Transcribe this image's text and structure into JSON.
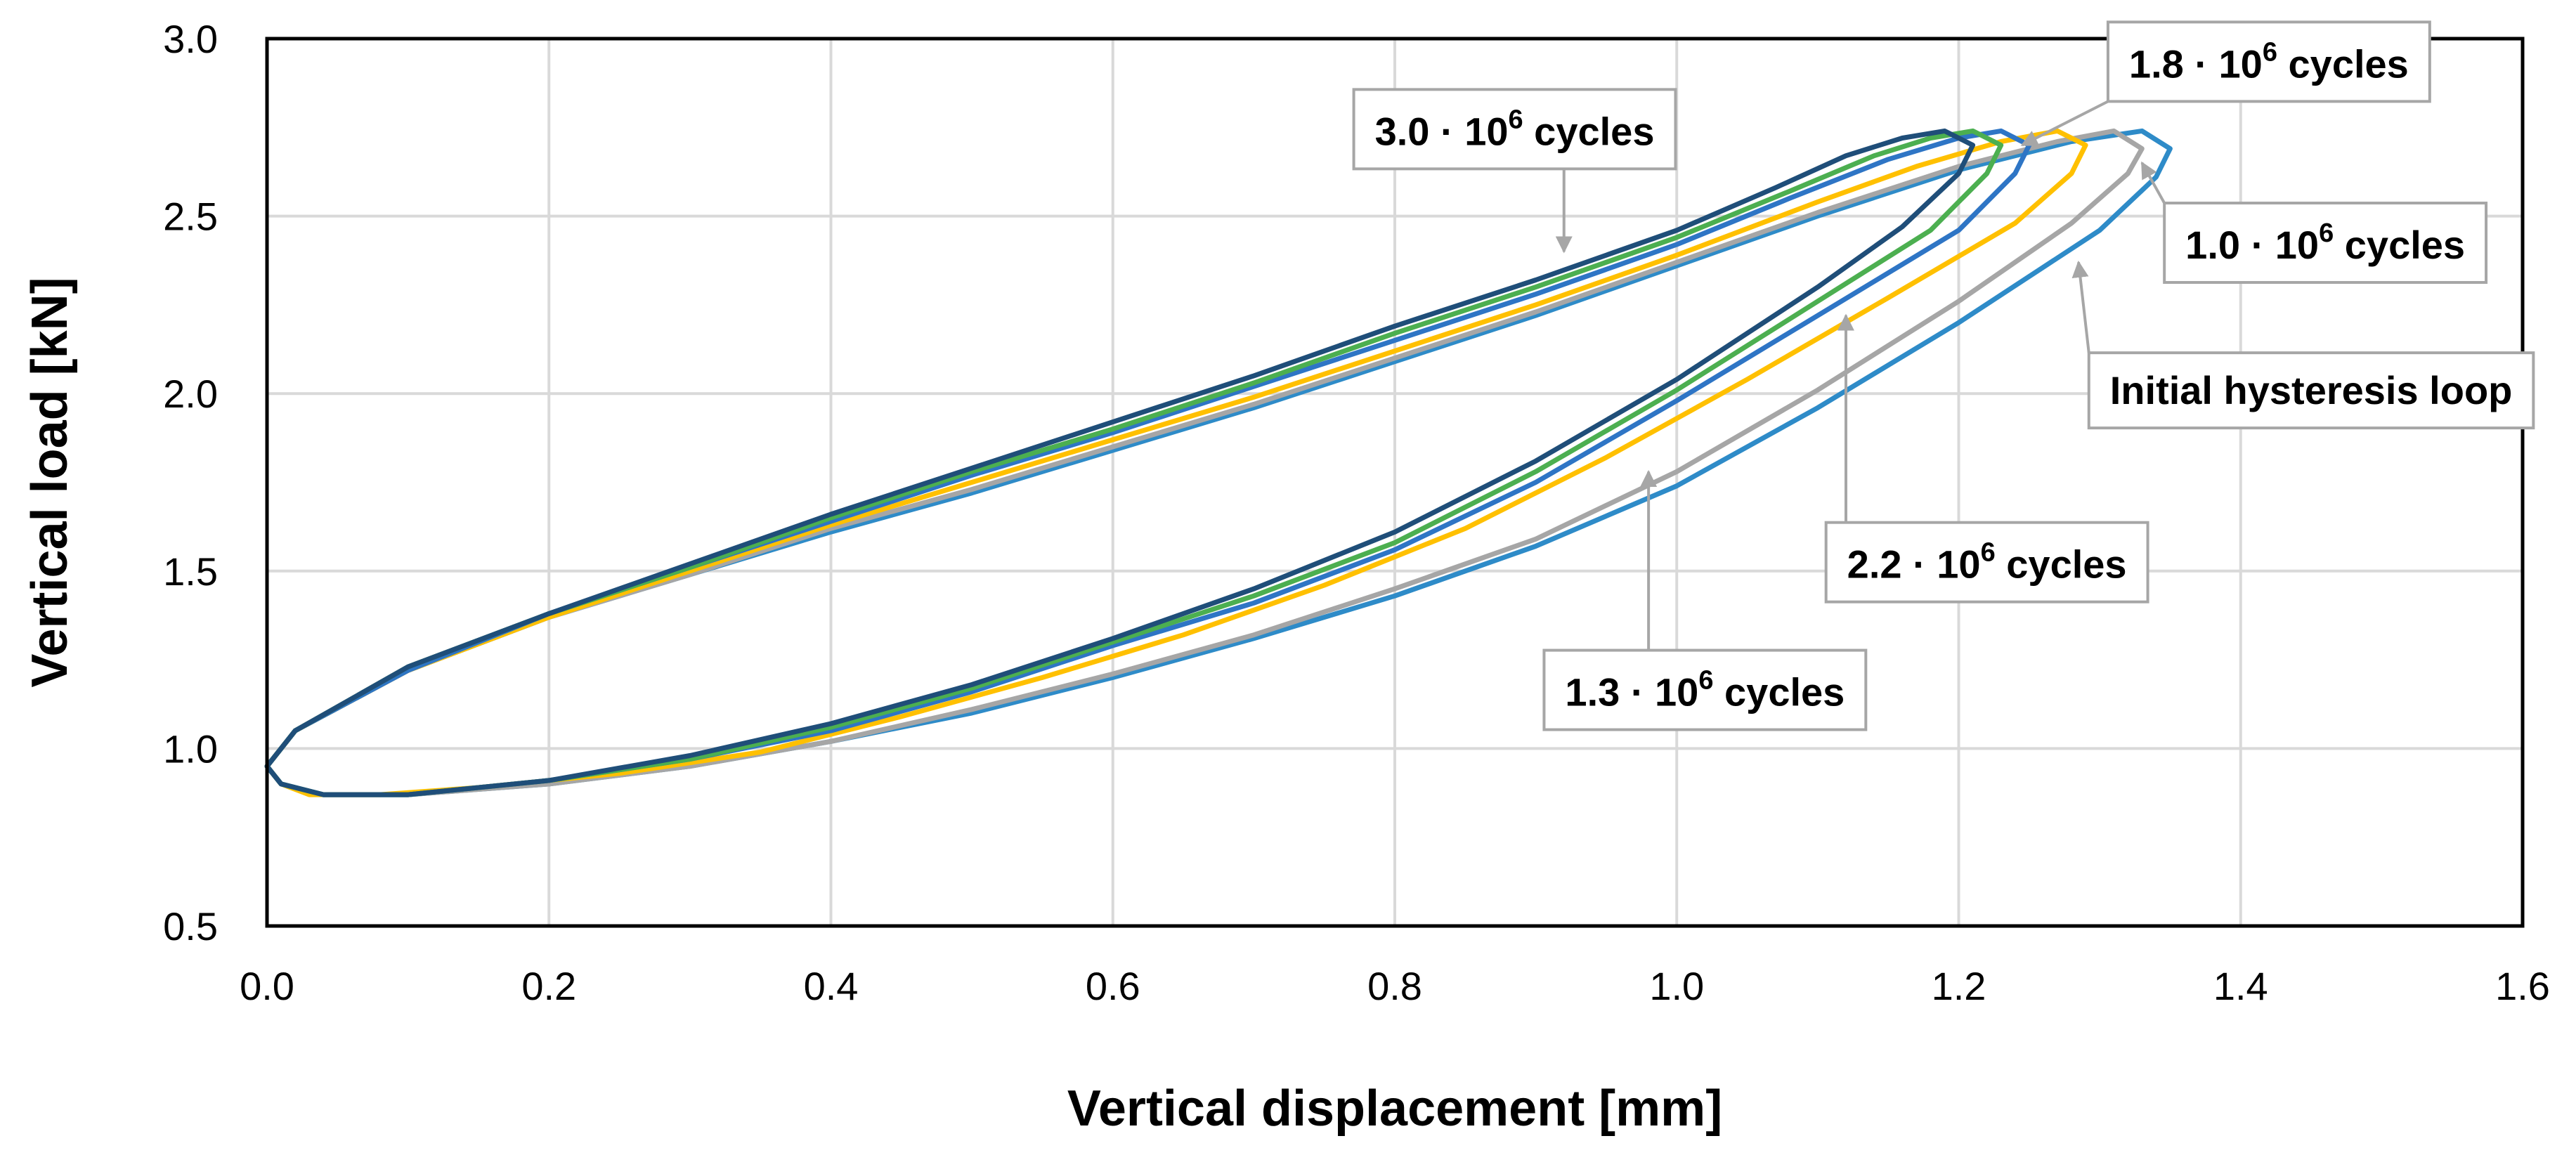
{
  "chart_data": {
    "type": "line",
    "title": "",
    "xlabel": "Vertical displacement [mm]",
    "ylabel": "Vertical load  [kN]",
    "xlim": [
      0.0,
      1.6
    ],
    "ylim": [
      0.5,
      3.0
    ],
    "x_ticks": [
      "0.0",
      "0.2",
      "0.4",
      "0.6",
      "0.8",
      "1.0",
      "1.2",
      "1.4",
      "1.6"
    ],
    "y_ticks": [
      "0.5",
      "1.0",
      "1.5",
      "2.0",
      "2.5",
      "3.0"
    ],
    "grid": true,
    "series": [
      {
        "name": "Initial hysteresis loop",
        "color": "#2E8BC8",
        "points": [
          [
            0.0,
            0.95
          ],
          [
            0.02,
            1.05
          ],
          [
            0.1,
            1.22
          ],
          [
            0.2,
            1.37
          ],
          [
            0.3,
            1.49
          ],
          [
            0.4,
            1.61
          ],
          [
            0.5,
            1.72
          ],
          [
            0.6,
            1.84
          ],
          [
            0.7,
            1.96
          ],
          [
            0.8,
            2.09
          ],
          [
            0.9,
            2.22
          ],
          [
            1.0,
            2.36
          ],
          [
            1.1,
            2.5
          ],
          [
            1.2,
            2.63
          ],
          [
            1.28,
            2.71
          ],
          [
            1.33,
            2.74
          ],
          [
            1.35,
            2.69
          ],
          [
            1.34,
            2.61
          ],
          [
            1.3,
            2.46
          ],
          [
            1.2,
            2.2
          ],
          [
            1.1,
            1.96
          ],
          [
            1.0,
            1.74
          ],
          [
            0.9,
            1.57
          ],
          [
            0.8,
            1.43
          ],
          [
            0.7,
            1.31
          ],
          [
            0.6,
            1.2
          ],
          [
            0.5,
            1.1
          ],
          [
            0.4,
            1.02
          ],
          [
            0.3,
            0.95
          ],
          [
            0.2,
            0.9
          ],
          [
            0.1,
            0.87
          ],
          [
            0.04,
            0.87
          ],
          [
            0.01,
            0.9
          ],
          [
            0.0,
            0.95
          ]
        ]
      },
      {
        "name": "1.0 · 10^6 cycles",
        "color": "#A6A6A6",
        "points": [
          [
            0.0,
            0.95
          ],
          [
            0.02,
            1.05
          ],
          [
            0.1,
            1.22
          ],
          [
            0.2,
            1.37
          ],
          [
            0.3,
            1.49
          ],
          [
            0.4,
            1.62
          ],
          [
            0.5,
            1.73
          ],
          [
            0.6,
            1.85
          ],
          [
            0.7,
            1.97
          ],
          [
            0.8,
            2.1
          ],
          [
            0.9,
            2.23
          ],
          [
            1.0,
            2.37
          ],
          [
            1.1,
            2.51
          ],
          [
            1.2,
            2.64
          ],
          [
            1.27,
            2.71
          ],
          [
            1.31,
            2.74
          ],
          [
            1.33,
            2.69
          ],
          [
            1.32,
            2.62
          ],
          [
            1.28,
            2.48
          ],
          [
            1.2,
            2.26
          ],
          [
            1.1,
            2.01
          ],
          [
            1.0,
            1.78
          ],
          [
            0.9,
            1.59
          ],
          [
            0.8,
            1.45
          ],
          [
            0.7,
            1.32
          ],
          [
            0.6,
            1.21
          ],
          [
            0.5,
            1.11
          ],
          [
            0.4,
            1.02
          ],
          [
            0.3,
            0.95
          ],
          [
            0.2,
            0.9
          ],
          [
            0.1,
            0.87
          ],
          [
            0.04,
            0.87
          ],
          [
            0.01,
            0.9
          ],
          [
            0.0,
            0.95
          ]
        ]
      },
      {
        "name": "1.3 · 10^6 cycles",
        "color": "#FFC000",
        "points": [
          [
            0.0,
            0.95
          ],
          [
            0.02,
            1.05
          ],
          [
            0.1,
            1.22
          ],
          [
            0.2,
            1.37
          ],
          [
            0.3,
            1.5
          ],
          [
            0.4,
            1.63
          ],
          [
            0.5,
            1.75
          ],
          [
            0.6,
            1.87
          ],
          [
            0.7,
            1.99
          ],
          [
            0.8,
            2.12
          ],
          [
            0.9,
            2.25
          ],
          [
            1.0,
            2.39
          ],
          [
            1.1,
            2.54
          ],
          [
            1.17,
            2.64
          ],
          [
            1.23,
            2.71
          ],
          [
            1.27,
            2.74
          ],
          [
            1.29,
            2.7
          ],
          [
            1.28,
            2.62
          ],
          [
            1.24,
            2.48
          ],
          [
            1.15,
            2.27
          ],
          [
            1.05,
            2.04
          ],
          [
            0.95,
            1.82
          ],
          [
            0.85,
            1.62
          ],
          [
            0.75,
            1.46
          ],
          [
            0.65,
            1.32
          ],
          [
            0.55,
            1.2
          ],
          [
            0.45,
            1.09
          ],
          [
            0.35,
            0.99
          ],
          [
            0.25,
            0.93
          ],
          [
            0.15,
            0.89
          ],
          [
            0.08,
            0.87
          ],
          [
            0.03,
            0.87
          ],
          [
            0.01,
            0.9
          ],
          [
            0.0,
            0.95
          ]
        ]
      },
      {
        "name": "1.8 · 10^6 cycles",
        "color": "#2E75C5",
        "points": [
          [
            0.0,
            0.95
          ],
          [
            0.02,
            1.05
          ],
          [
            0.1,
            1.22
          ],
          [
            0.2,
            1.38
          ],
          [
            0.3,
            1.51
          ],
          [
            0.4,
            1.64
          ],
          [
            0.5,
            1.77
          ],
          [
            0.6,
            1.89
          ],
          [
            0.7,
            2.02
          ],
          [
            0.8,
            2.15
          ],
          [
            0.9,
            2.28
          ],
          [
            1.0,
            2.42
          ],
          [
            1.08,
            2.55
          ],
          [
            1.15,
            2.66
          ],
          [
            1.2,
            2.72
          ],
          [
            1.23,
            2.74
          ],
          [
            1.25,
            2.7
          ],
          [
            1.24,
            2.62
          ],
          [
            1.2,
            2.46
          ],
          [
            1.1,
            2.22
          ],
          [
            1.0,
            1.98
          ],
          [
            0.9,
            1.75
          ],
          [
            0.8,
            1.56
          ],
          [
            0.7,
            1.41
          ],
          [
            0.6,
            1.29
          ],
          [
            0.5,
            1.16
          ],
          [
            0.4,
            1.05
          ],
          [
            0.3,
            0.97
          ],
          [
            0.2,
            0.91
          ],
          [
            0.1,
            0.87
          ],
          [
            0.04,
            0.87
          ],
          [
            0.01,
            0.9
          ],
          [
            0.0,
            0.95
          ]
        ]
      },
      {
        "name": "2.2 · 10^6 cycles",
        "color": "#4CAF50",
        "points": [
          [
            0.0,
            0.95
          ],
          [
            0.02,
            1.05
          ],
          [
            0.1,
            1.23
          ],
          [
            0.2,
            1.38
          ],
          [
            0.3,
            1.51
          ],
          [
            0.4,
            1.65
          ],
          [
            0.5,
            1.78
          ],
          [
            0.6,
            1.9
          ],
          [
            0.7,
            2.03
          ],
          [
            0.8,
            2.17
          ],
          [
            0.9,
            2.3
          ],
          [
            1.0,
            2.44
          ],
          [
            1.08,
            2.57
          ],
          [
            1.14,
            2.67
          ],
          [
            1.18,
            2.72
          ],
          [
            1.21,
            2.74
          ],
          [
            1.23,
            2.7
          ],
          [
            1.22,
            2.62
          ],
          [
            1.18,
            2.46
          ],
          [
            1.1,
            2.26
          ],
          [
            1.0,
            2.01
          ],
          [
            0.9,
            1.78
          ],
          [
            0.8,
            1.58
          ],
          [
            0.7,
            1.43
          ],
          [
            0.6,
            1.3
          ],
          [
            0.5,
            1.17
          ],
          [
            0.4,
            1.06
          ],
          [
            0.3,
            0.97
          ],
          [
            0.2,
            0.91
          ],
          [
            0.1,
            0.87
          ],
          [
            0.04,
            0.87
          ],
          [
            0.01,
            0.9
          ],
          [
            0.0,
            0.95
          ]
        ]
      },
      {
        "name": "3.0 · 10^6 cycles",
        "color": "#1F4E79",
        "points": [
          [
            0.0,
            0.95
          ],
          [
            0.02,
            1.05
          ],
          [
            0.1,
            1.23
          ],
          [
            0.2,
            1.38
          ],
          [
            0.3,
            1.52
          ],
          [
            0.4,
            1.66
          ],
          [
            0.5,
            1.79
          ],
          [
            0.6,
            1.92
          ],
          [
            0.7,
            2.05
          ],
          [
            0.8,
            2.19
          ],
          [
            0.9,
            2.32
          ],
          [
            1.0,
            2.46
          ],
          [
            1.07,
            2.58
          ],
          [
            1.12,
            2.67
          ],
          [
            1.16,
            2.72
          ],
          [
            1.19,
            2.74
          ],
          [
            1.21,
            2.7
          ],
          [
            1.2,
            2.62
          ],
          [
            1.16,
            2.47
          ],
          [
            1.1,
            2.3
          ],
          [
            1.0,
            2.04
          ],
          [
            0.9,
            1.81
          ],
          [
            0.8,
            1.61
          ],
          [
            0.7,
            1.45
          ],
          [
            0.6,
            1.31
          ],
          [
            0.5,
            1.18
          ],
          [
            0.4,
            1.07
          ],
          [
            0.3,
            0.98
          ],
          [
            0.2,
            0.91
          ],
          [
            0.1,
            0.87
          ],
          [
            0.04,
            0.87
          ],
          [
            0.01,
            0.9
          ],
          [
            0.0,
            0.95
          ]
        ]
      }
    ],
    "annotations": [
      {
        "name": "3.0e6",
        "base": "3.0 · 10",
        "sup": "6",
        "suffix": " cycles",
        "target": [
          0.92,
          2.4
        ],
        "box_at": [
          0.885,
          2.74
        ],
        "text_anchor": "middle"
      },
      {
        "name": "1.8e6",
        "base": "1.8 · 10",
        "sup": "6",
        "suffix": " cycles",
        "target": [
          1.245,
          2.7
        ],
        "box_at": [
          1.42,
          2.93
        ],
        "text_anchor": "middle"
      },
      {
        "name": "1.0e6",
        "base": "1.0 · 10",
        "sup": "6",
        "suffix": " cycles",
        "target": [
          1.33,
          2.65
        ],
        "box_at": [
          1.46,
          2.42
        ],
        "text_anchor": "middle"
      },
      {
        "name": "initial",
        "text": "Initial hysteresis loop",
        "target": [
          1.285,
          2.37
        ],
        "box_at": [
          1.45,
          2.01
        ],
        "text_anchor": "middle"
      },
      {
        "name": "2.2e6",
        "base": "2.2 · 10",
        "sup": "6",
        "suffix": " cycles",
        "target": [
          1.12,
          2.22
        ],
        "box_at": [
          1.22,
          1.52
        ],
        "text_anchor": "middle"
      },
      {
        "name": "1.3e6",
        "base": "1.3 · 10",
        "sup": "6",
        "suffix": " cycles",
        "target": [
          0.98,
          1.78
        ],
        "box_at": [
          1.02,
          1.16
        ],
        "text_anchor": "middle"
      }
    ]
  }
}
